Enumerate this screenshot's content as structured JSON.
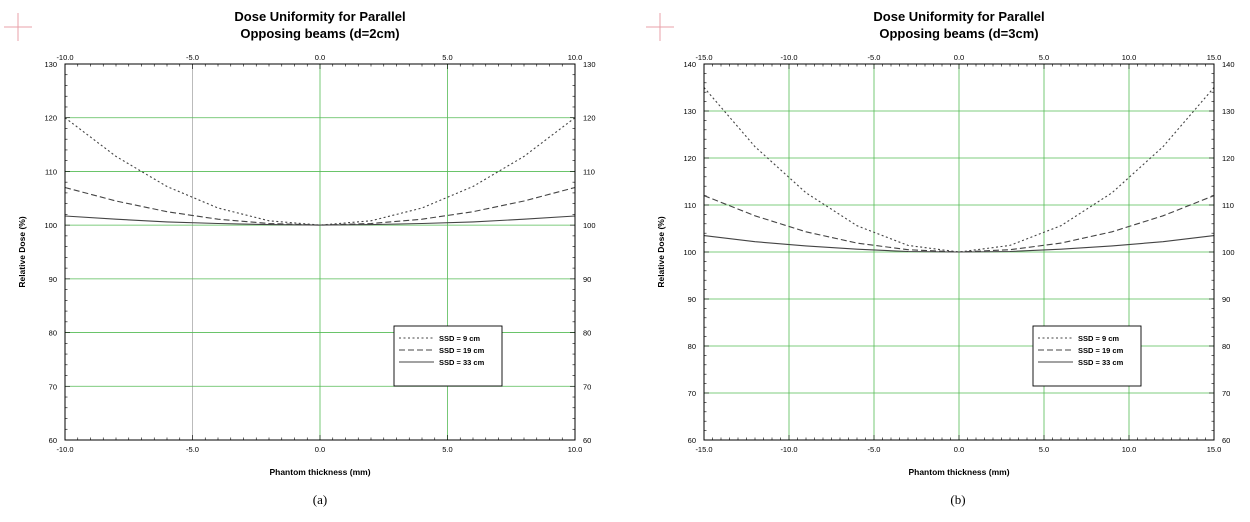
{
  "chart_data": [
    {
      "type": "line",
      "title": "Dose Uniformity for Parallel",
      "subtitle": "Opposing beams (d=2cm)",
      "xlabel": "Phantom thickness (mm)",
      "ylabel": "Relative Dose (%)",
      "xlim": [
        -10,
        10
      ],
      "ylim": [
        60,
        130
      ],
      "xticks": [
        "-10.0",
        "-5.0",
        "0.0",
        "5.0",
        "10.0"
      ],
      "yticks": [
        "60",
        "70",
        "80",
        "90",
        "100",
        "110",
        "120",
        "130"
      ],
      "grid": true,
      "legend_position": "bottom-right",
      "caption": "(a)",
      "x": [
        -10,
        -8,
        -6,
        -4,
        -2,
        0,
        2,
        4,
        6,
        8,
        10
      ],
      "series": [
        {
          "name": "SSD = 9 cm",
          "style": "dotted",
          "values": [
            120.0,
            112.8,
            107.2,
            103.2,
            100.8,
            100.0,
            100.8,
            103.2,
            107.2,
            112.8,
            120.0
          ]
        },
        {
          "name": "SSD = 19 cm",
          "style": "dashed",
          "values": [
            107.0,
            104.5,
            102.5,
            101.1,
            100.3,
            100.0,
            100.3,
            101.1,
            102.5,
            104.5,
            107.0
          ]
        },
        {
          "name": "SSD = 33 cm",
          "style": "solid",
          "values": [
            101.7,
            101.1,
            100.6,
            100.3,
            100.1,
            100.0,
            100.1,
            100.3,
            100.6,
            101.1,
            101.7
          ]
        }
      ]
    },
    {
      "type": "line",
      "title": "Dose Uniformity for Parallel",
      "subtitle": "Opposing beams (d=3cm)",
      "xlabel": "Phantom thickness (mm)",
      "ylabel": "Relative Dose (%)",
      "xlim": [
        -15,
        15
      ],
      "ylim": [
        60,
        140
      ],
      "xticks": [
        "-15.0",
        "-10.0",
        "-5.0",
        "0.0",
        "5.0",
        "10.0",
        "15.0"
      ],
      "yticks": [
        "60",
        "70",
        "80",
        "90",
        "100",
        "110",
        "120",
        "130",
        "140"
      ],
      "grid": true,
      "legend_position": "bottom-right",
      "caption": "(b)",
      "x": [
        -15,
        -12,
        -9,
        -6,
        -3,
        0,
        3,
        6,
        9,
        12,
        15
      ],
      "series": [
        {
          "name": "SSD = 9 cm",
          "style": "dotted",
          "values": [
            135.0,
            122.4,
            112.6,
            105.6,
            101.4,
            100.0,
            101.4,
            105.6,
            112.6,
            122.4,
            135.0
          ]
        },
        {
          "name": "SSD = 19 cm",
          "style": "dashed",
          "values": [
            112.0,
            107.7,
            104.3,
            101.9,
            100.5,
            100.0,
            100.5,
            101.9,
            104.3,
            107.7,
            112.0
          ]
        },
        {
          "name": "SSD = 33 cm",
          "style": "solid",
          "values": [
            103.5,
            102.2,
            101.3,
            100.6,
            100.1,
            100.0,
            100.1,
            100.6,
            101.3,
            102.2,
            103.5
          ]
        }
      ]
    }
  ],
  "colors": {
    "grid": "#55bb55",
    "axis": "#000000",
    "line": "#444444",
    "crosshair": "#e8a0a8"
  }
}
